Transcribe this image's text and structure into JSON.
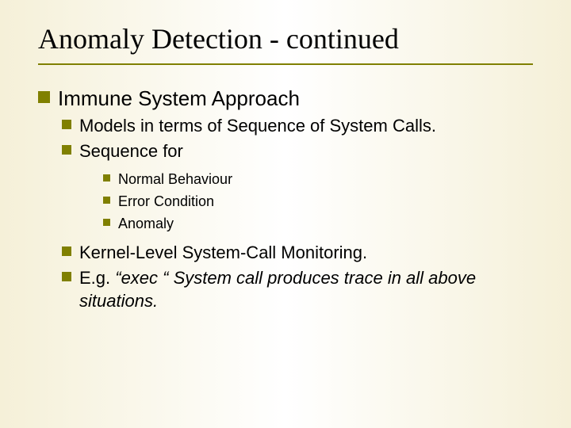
{
  "colors": {
    "background_gradient": [
      "#f5f0d8",
      "#ffffff",
      "#f5f0d8"
    ],
    "bullet_color": "#808000",
    "rule_color": "#808000",
    "text_color": "#000000"
  },
  "typography": {
    "title_font": "Times New Roman",
    "body_font": "Arial",
    "title_fontsize": 36,
    "lvl1_fontsize": 26,
    "lvl2_fontsize": 22,
    "lvl3_fontsize": 18
  },
  "title": "Anomaly Detection - continued",
  "lvl1": {
    "item1": "Immune System Approach"
  },
  "lvl2a": {
    "item1": "Models in terms of Sequence of System Calls.",
    "item2": "Sequence for"
  },
  "lvl3": {
    "item1": "Normal Behaviour",
    "item2": "Error Condition",
    "item3": "Anomaly"
  },
  "lvl2b": {
    "item1": "Kernel-Level System-Call Monitoring.",
    "item2_prefix": "E.g. ",
    "item2_italic": "“exec “ System call produces trace in all above situations."
  }
}
